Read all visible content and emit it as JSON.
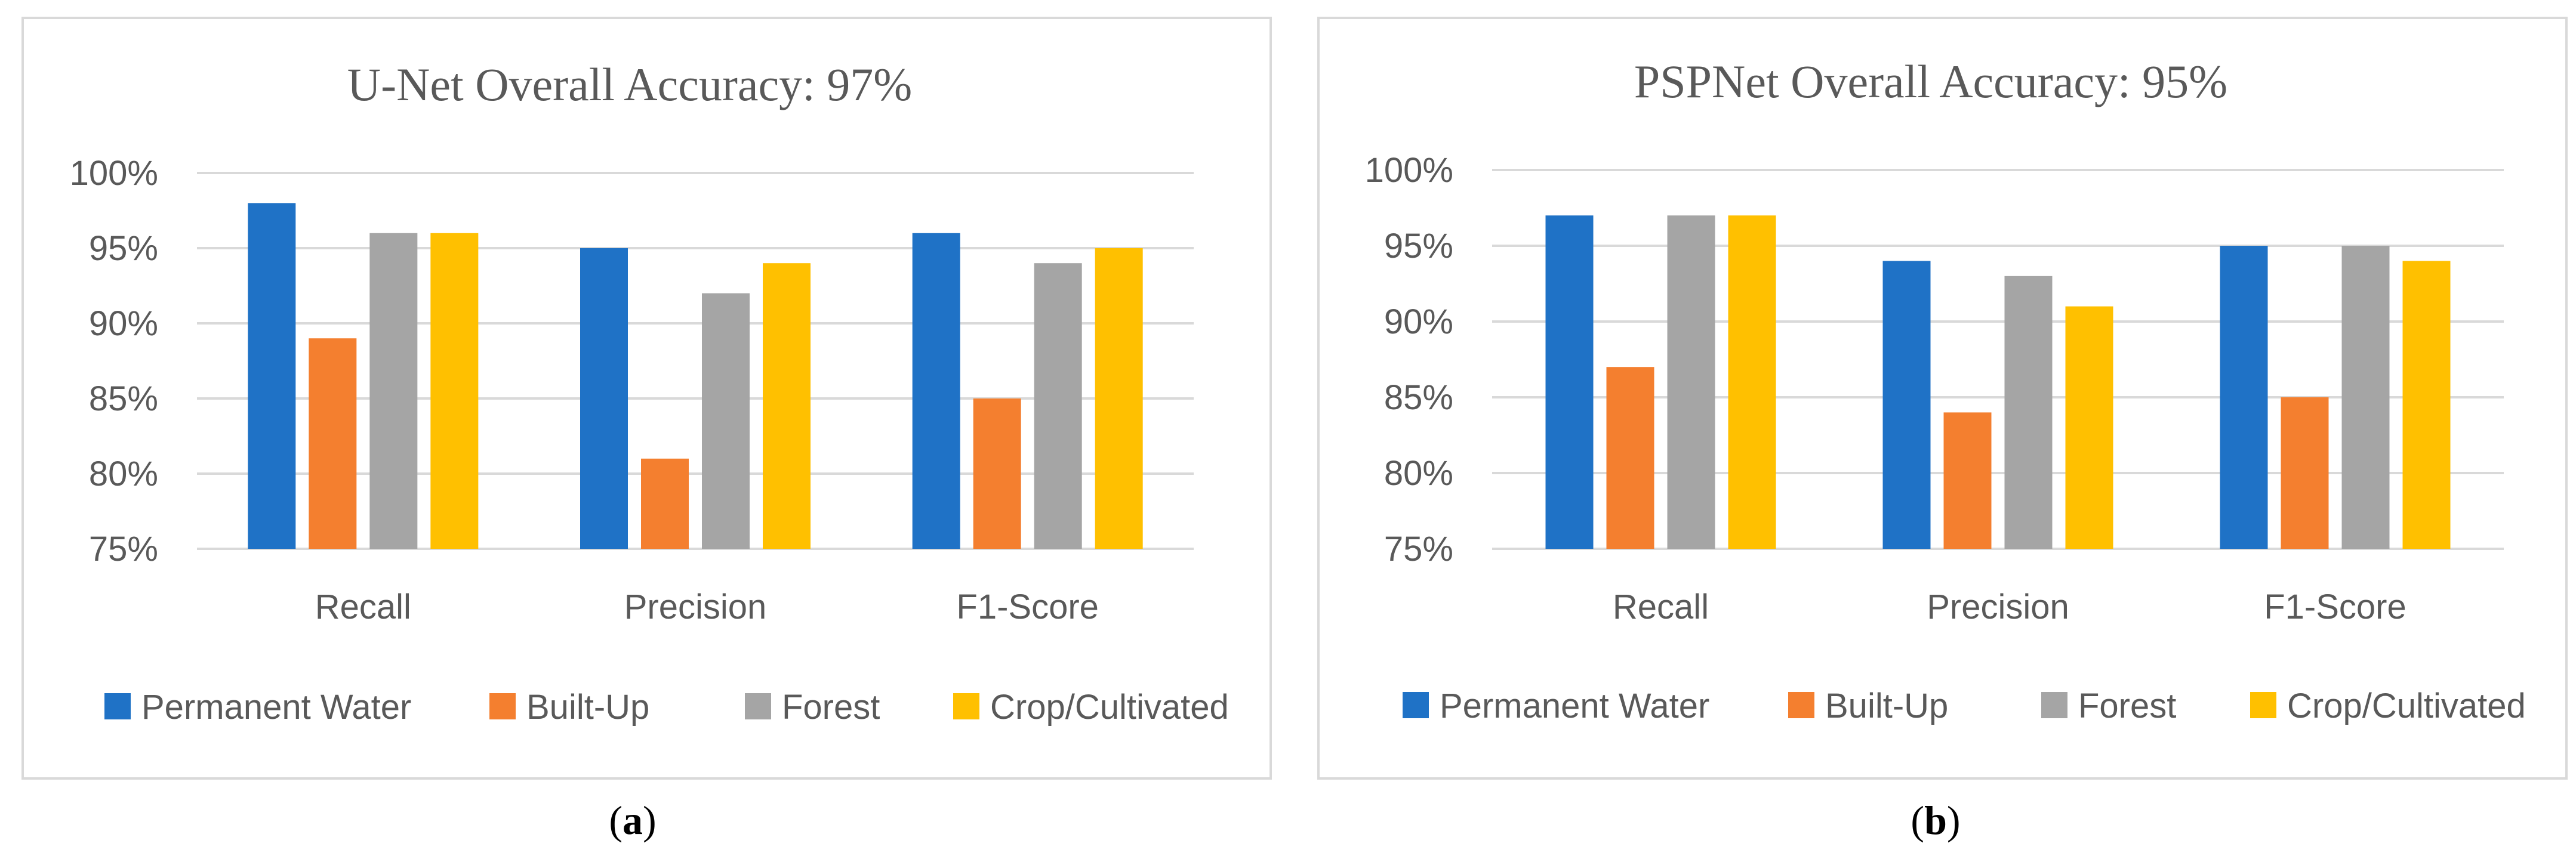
{
  "chart_data": [
    {
      "type": "bar",
      "title": "U-Net Overall Accuracy: 97%",
      "categories": [
        "Recall",
        "Precision",
        "F1-Score"
      ],
      "series": [
        {
          "name": "Permanent Water",
          "color": "#1F72C6",
          "values": [
            98,
            95,
            96
          ]
        },
        {
          "name": "Built-Up",
          "color": "#F47F2F",
          "values": [
            89,
            81,
            85
          ]
        },
        {
          "name": "Forest",
          "color": "#A5A5A5",
          "values": [
            96,
            92,
            94
          ]
        },
        {
          "name": "Crop/Cultivated",
          "color": "#FFC000",
          "values": [
            96,
            94,
            95
          ]
        }
      ],
      "ylim": [
        75,
        100
      ],
      "yticks": [
        "75%",
        "80%",
        "85%",
        "90%",
        "95%",
        "100%"
      ],
      "xlabel": "",
      "ylabel": "",
      "grid": true,
      "legend_position": "bottom",
      "caption_letter": "a"
    },
    {
      "type": "bar",
      "title": "PSPNet Overall Accuracy: 95%",
      "categories": [
        "Recall",
        "Precision",
        "F1-Score"
      ],
      "series": [
        {
          "name": "Permanent Water",
          "color": "#1F72C6",
          "values": [
            97,
            94,
            95
          ]
        },
        {
          "name": "Built-Up",
          "color": "#F47F2F",
          "values": [
            87,
            84,
            85
          ]
        },
        {
          "name": "Forest",
          "color": "#A5A5A5",
          "values": [
            97,
            93,
            95
          ]
        },
        {
          "name": "Crop/Cultivated",
          "color": "#FFC000",
          "values": [
            97,
            91,
            94
          ]
        }
      ],
      "ylim": [
        75,
        100
      ],
      "yticks": [
        "75%",
        "80%",
        "85%",
        "90%",
        "95%",
        "100%"
      ],
      "xlabel": "",
      "ylabel": "",
      "grid": true,
      "legend_position": "bottom",
      "caption_letter": "b"
    }
  ],
  "colors": {
    "frame": "#D9D9D9",
    "grid": "#D9D9D9",
    "text": "#595959"
  }
}
